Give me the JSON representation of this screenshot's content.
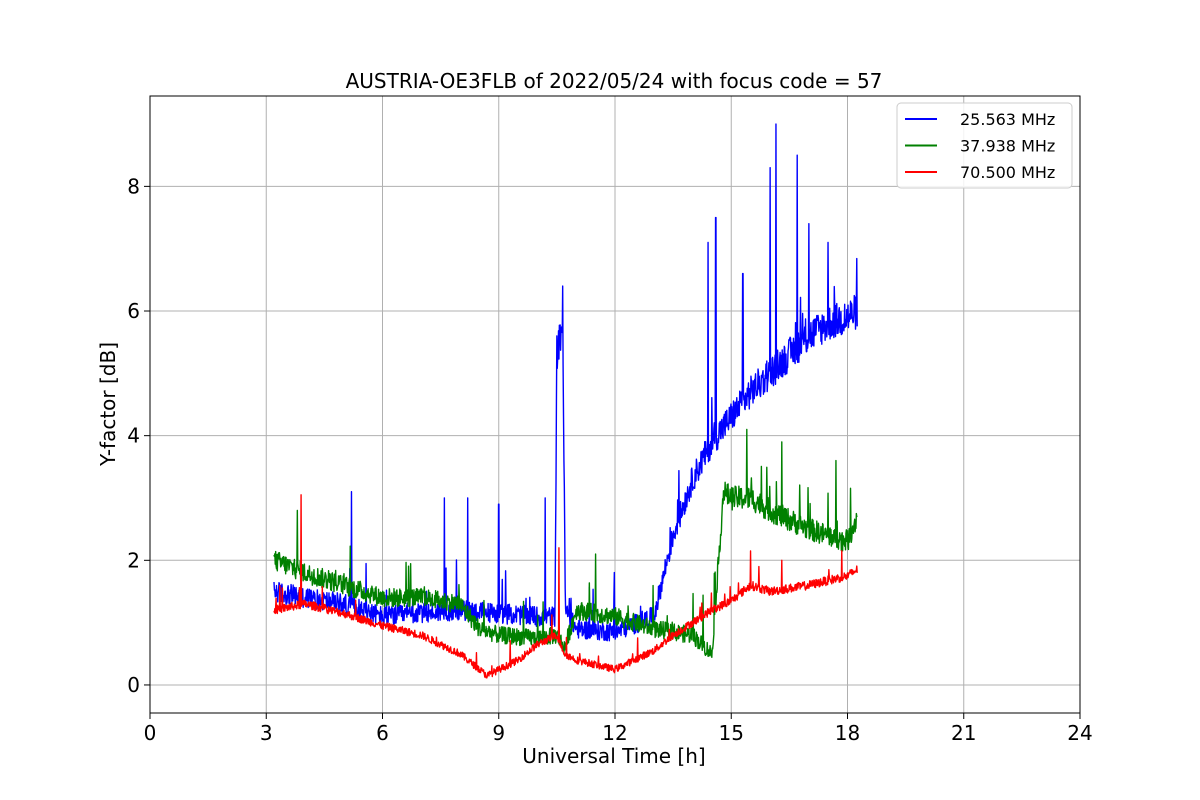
{
  "chart_data": {
    "type": "line",
    "title": "AUSTRIA-OE3FLB of 2022/05/24 with focus code = 57",
    "xlabel": "Universal Time [h]",
    "ylabel": "Y-factor [dB]",
    "xlim": [
      0,
      24
    ],
    "ylim": [
      -0.45,
      9.45
    ],
    "xticks": [
      0,
      3,
      6,
      9,
      12,
      15,
      18,
      21,
      24
    ],
    "yticks": [
      0,
      2,
      4,
      6,
      8
    ],
    "grid": true,
    "legend_position": "top-right",
    "series": [
      {
        "name": "25.563 MHz",
        "color": "#0000ff",
        "noise": 0.22,
        "points": [
          [
            3.2,
            1.5
          ],
          [
            4.0,
            1.4
          ],
          [
            5.0,
            1.3
          ],
          [
            6.0,
            1.1
          ],
          [
            7.0,
            1.15
          ],
          [
            8.0,
            1.2
          ],
          [
            9.0,
            1.15
          ],
          [
            10.0,
            1.1
          ],
          [
            10.45,
            1.1
          ],
          [
            10.5,
            5.3
          ],
          [
            10.65,
            5.8
          ],
          [
            10.72,
            1.2
          ],
          [
            11.0,
            0.9
          ],
          [
            12.0,
            0.85
          ],
          [
            13.0,
            1.1
          ],
          [
            13.5,
            2.4
          ],
          [
            14.0,
            3.3
          ],
          [
            14.5,
            3.9
          ],
          [
            15.0,
            4.3
          ],
          [
            15.5,
            4.7
          ],
          [
            16.0,
            5.0
          ],
          [
            16.5,
            5.3
          ],
          [
            17.0,
            5.6
          ],
          [
            17.5,
            5.8
          ],
          [
            18.0,
            5.9
          ],
          [
            18.25,
            6.0
          ]
        ],
        "spikes": [
          [
            10.5,
            5.6
          ],
          [
            10.65,
            6.4
          ],
          [
            14.4,
            7.1
          ],
          [
            14.6,
            7.5
          ],
          [
            15.3,
            6.6
          ],
          [
            16.0,
            8.3
          ],
          [
            16.15,
            9.0
          ],
          [
            16.7,
            8.5
          ],
          [
            17.0,
            7.4
          ],
          [
            17.5,
            7.1
          ],
          [
            5.2,
            3.1
          ],
          [
            7.6,
            3.0
          ],
          [
            8.2,
            3.0
          ],
          [
            9.0,
            2.9
          ],
          [
            10.2,
            3.0
          ]
        ]
      },
      {
        "name": "37.938 MHz",
        "color": "#008000",
        "noise": 0.2,
        "points": [
          [
            3.2,
            2.0
          ],
          [
            4.0,
            1.8
          ],
          [
            5.0,
            1.6
          ],
          [
            6.0,
            1.4
          ],
          [
            7.0,
            1.4
          ],
          [
            8.0,
            1.3
          ],
          [
            8.5,
            0.9
          ],
          [
            9.0,
            0.8
          ],
          [
            10.0,
            0.75
          ],
          [
            10.5,
            0.8
          ],
          [
            10.7,
            0.6
          ],
          [
            11.0,
            1.2
          ],
          [
            12.0,
            1.1
          ],
          [
            13.0,
            0.9
          ],
          [
            14.0,
            0.8
          ],
          [
            14.5,
            0.5
          ],
          [
            14.8,
            3.1
          ],
          [
            15.0,
            3.0
          ],
          [
            15.5,
            3.0
          ],
          [
            16.0,
            2.8
          ],
          [
            17.0,
            2.5
          ],
          [
            17.5,
            2.4
          ],
          [
            18.0,
            2.3
          ],
          [
            18.25,
            2.7
          ]
        ],
        "spikes": [
          [
            3.8,
            2.8
          ],
          [
            15.4,
            4.1
          ],
          [
            16.3,
            3.9
          ],
          [
            17.7,
            3.6
          ],
          [
            11.5,
            2.1
          ]
        ]
      },
      {
        "name": "70.500 MHz",
        "color": "#ff0000",
        "noise": 0.09,
        "points": [
          [
            3.2,
            1.2
          ],
          [
            4.0,
            1.3
          ],
          [
            5.0,
            1.15
          ],
          [
            6.0,
            0.95
          ],
          [
            7.0,
            0.8
          ],
          [
            8.0,
            0.5
          ],
          [
            8.7,
            0.15
          ],
          [
            9.5,
            0.4
          ],
          [
            10.0,
            0.65
          ],
          [
            10.5,
            0.8
          ],
          [
            10.7,
            0.5
          ],
          [
            11.0,
            0.4
          ],
          [
            12.0,
            0.25
          ],
          [
            13.0,
            0.55
          ],
          [
            13.5,
            0.8
          ],
          [
            14.0,
            1.0
          ],
          [
            14.5,
            1.2
          ],
          [
            15.0,
            1.35
          ],
          [
            15.5,
            1.6
          ],
          [
            16.0,
            1.5
          ],
          [
            17.0,
            1.6
          ],
          [
            18.0,
            1.75
          ],
          [
            18.25,
            1.85
          ]
        ],
        "spikes": [
          [
            3.9,
            3.05
          ],
          [
            10.55,
            2.2
          ],
          [
            15.5,
            2.15
          ],
          [
            16.3,
            2.0
          ]
        ]
      }
    ]
  }
}
